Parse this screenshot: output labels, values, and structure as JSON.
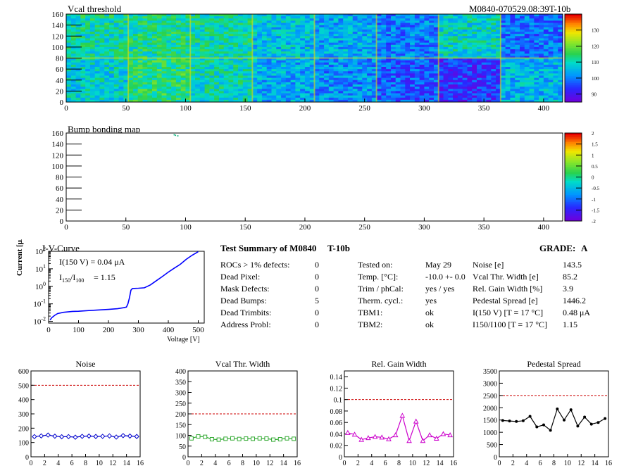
{
  "header": {
    "module_id": "M0840-070529.08:39T-10b"
  },
  "vcal_map": {
    "title": "Vcal threshold",
    "x_ticks": [
      "0",
      "50",
      "100",
      "150",
      "200",
      "250",
      "300",
      "350",
      "400"
    ],
    "y_ticks": [
      "0",
      "20",
      "40",
      "60",
      "80",
      "100",
      "120",
      "140",
      "160"
    ],
    "scale_ticks": [
      "90",
      "100",
      "110",
      "120",
      "130"
    ]
  },
  "bump_map": {
    "title": "Bump bonding map",
    "x_ticks": [
      "0",
      "50",
      "100",
      "150",
      "200",
      "250",
      "300",
      "350",
      "400"
    ],
    "y_ticks": [
      "0",
      "20",
      "40",
      "60",
      "80",
      "100",
      "120",
      "140",
      "160"
    ],
    "scale_ticks": [
      "-2",
      "-1.5",
      "-1",
      "-0.5",
      "0",
      "0.5",
      "1",
      "1.5",
      "2"
    ]
  },
  "iv_curve": {
    "title": "I-V-Curve",
    "ylabel": "Current [μA]",
    "xlabel": "Voltage [V]",
    "annot_current": "I(150 V) = 0.04 μA",
    "annot_ratio_label": "I150/I100",
    "annot_ratio_value": "=  1.15",
    "x_ticks": [
      "0",
      "100",
      "200",
      "300",
      "400",
      "500"
    ],
    "y_tick_exponents": [
      "-2",
      "-1",
      "0",
      "1",
      "2"
    ]
  },
  "summary": {
    "title": "Test Summary of M0840",
    "suffix": "T-10b",
    "grade_label": "GRADE:",
    "grade_value": "A",
    "left_rows": [
      {
        "label": "ROCs > 1% defects:",
        "value": "0"
      },
      {
        "label": "Dead Pixel:",
        "value": "0"
      },
      {
        "label": "Mask Defects:",
        "value": "0"
      },
      {
        "label": "Dead Bumps:",
        "value": "5"
      },
      {
        "label": "Dead Trimbits:",
        "value": "0"
      },
      {
        "label": "Address Probl:",
        "value": "0"
      }
    ],
    "mid_rows": [
      {
        "label": "Tested on:",
        "value": "May 29"
      },
      {
        "label": "Temp. [°C]:",
        "value": "-10.0 +- 0.0"
      },
      {
        "label": "Trim / phCal:",
        "value": "yes / yes"
      },
      {
        "label": "Therm. cycl.:",
        "value": "yes"
      },
      {
        "label": "TBM1:",
        "value": "ok"
      },
      {
        "label": "TBM2:",
        "value": "ok"
      }
    ],
    "right_rows": [
      {
        "label": "Noise [e]",
        "value": "143.5"
      },
      {
        "label": "Vcal Thr. Width [e]",
        "value": "85.2"
      },
      {
        "label": "Rel. Gain Width [%]",
        "value": "3.9"
      },
      {
        "label": "Pedestal Spread [e]",
        "value": "1446.2"
      },
      {
        "label": "I(150 V)  [T = 17 °C]",
        "value": "0.48 μA"
      },
      {
        "label": "I150/I100  [T = 17 °C]",
        "value": "1.15"
      }
    ]
  },
  "chart_data": [
    {
      "type": "heatmap",
      "title": "Vcal threshold",
      "xlim": [
        0,
        416
      ],
      "ylim": [
        0,
        160
      ],
      "zlim": [
        85,
        140
      ],
      "roc_mean_values": {
        "top_row": [
          111,
          112,
          111,
          106,
          104,
          100,
          109,
          99
        ],
        "bottom_row": [
          108,
          114,
          110,
          104,
          101,
          97,
          93,
          105
        ]
      },
      "colorbar": "rainbow"
    },
    {
      "type": "heatmap",
      "title": "Bump bonding map",
      "xlim": [
        0,
        416
      ],
      "ylim": [
        0,
        160
      ],
      "zlim": [
        -2,
        2
      ],
      "points": [
        [
          90,
          158
        ],
        [
          91,
          157
        ],
        [
          93,
          156
        ]
      ]
    },
    {
      "type": "line",
      "title": "I-V-Curve",
      "xlabel": "Voltage [V]",
      "ylabel": "Current [μA]",
      "xlim": [
        0,
        520
      ],
      "ylim": [
        0.008,
        100
      ],
      "log_y": true,
      "x": [
        5,
        10,
        20,
        30,
        50,
        80,
        100,
        130,
        160,
        200,
        230,
        250,
        260,
        265,
        270,
        275,
        280,
        300,
        320,
        340,
        360,
        380,
        400,
        420,
        440,
        460,
        480,
        500
      ],
      "y": [
        0.012,
        0.016,
        0.022,
        0.028,
        0.033,
        0.037,
        0.038,
        0.041,
        0.044,
        0.048,
        0.053,
        0.06,
        0.065,
        0.1,
        0.22,
        0.6,
        0.75,
        0.78,
        0.82,
        1.2,
        2.1,
        3.6,
        6.5,
        11,
        18,
        35,
        60,
        95
      ],
      "color": "#0000ff"
    },
    {
      "type": "line",
      "title": "Noise",
      "xlim": [
        0,
        16
      ],
      "ylim": [
        0,
        600
      ],
      "threshold": 500,
      "x": [
        0.5,
        1.5,
        2.5,
        3.5,
        4.5,
        5.5,
        6.5,
        7.5,
        8.5,
        9.5,
        10.5,
        11.5,
        12.5,
        13.5,
        14.5,
        15.5
      ],
      "y": [
        141,
        146,
        152,
        144,
        140,
        141,
        137,
        143,
        145,
        142,
        143,
        146,
        138,
        148,
        145,
        142
      ],
      "color": "#0000cc"
    },
    {
      "type": "line",
      "title": "Vcal Thr. Width",
      "xlim": [
        0,
        16
      ],
      "ylim": [
        0,
        400
      ],
      "threshold": 200,
      "x": [
        0.5,
        1.5,
        2.5,
        3.5,
        4.5,
        5.5,
        6.5,
        7.5,
        8.5,
        9.5,
        10.5,
        11.5,
        12.5,
        13.5,
        14.5,
        15.5
      ],
      "y": [
        86,
        95,
        93,
        82,
        80,
        84,
        86,
        83,
        85,
        84,
        86,
        85,
        80,
        82,
        86,
        84
      ],
      "color": "#33aa33"
    },
    {
      "type": "line",
      "title": "Rel. Gain Width",
      "xlim": [
        0,
        16
      ],
      "ylim": [
        0,
        0.15
      ],
      "threshold": 0.1,
      "x": [
        0.5,
        1.5,
        2.5,
        3.5,
        4.5,
        5.5,
        6.5,
        7.5,
        8.5,
        9.5,
        10.5,
        11.5,
        12.5,
        13.5,
        14.5,
        15.5
      ],
      "y": [
        0.042,
        0.039,
        0.03,
        0.033,
        0.035,
        0.034,
        0.031,
        0.038,
        0.072,
        0.028,
        0.062,
        0.028,
        0.038,
        0.032,
        0.04,
        0.038
      ],
      "color": "#cc00cc"
    },
    {
      "type": "line",
      "title": "Pedestal Spread",
      "xlim": [
        0,
        16
      ],
      "ylim": [
        0,
        3500
      ],
      "threshold": 2500,
      "x": [
        0.5,
        1.5,
        2.5,
        3.5,
        4.5,
        5.5,
        6.5,
        7.5,
        8.5,
        9.5,
        10.5,
        11.5,
        12.5,
        13.5,
        14.5,
        15.5
      ],
      "y": [
        1480,
        1460,
        1440,
        1470,
        1650,
        1220,
        1300,
        1080,
        1950,
        1500,
        1920,
        1250,
        1620,
        1330,
        1400,
        1560
      ],
      "color": "#000000"
    }
  ]
}
